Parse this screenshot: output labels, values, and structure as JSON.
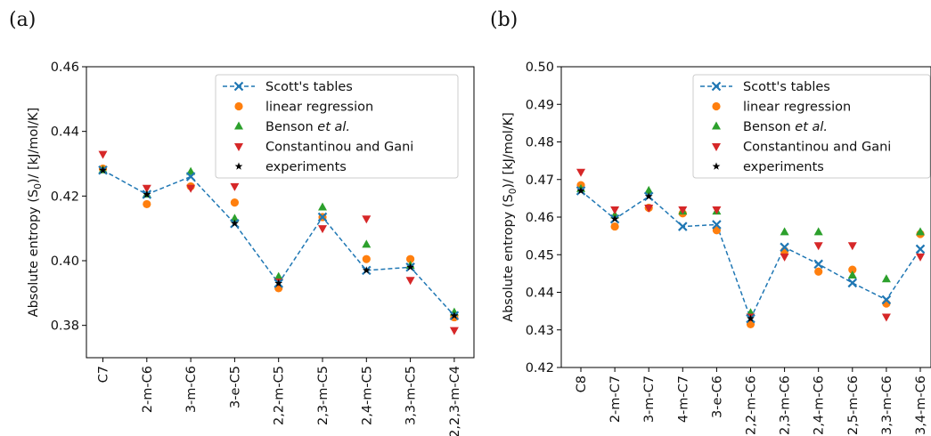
{
  "panels": [
    {
      "tag": "(a)"
    },
    {
      "tag": "(b)"
    }
  ],
  "colors": {
    "scott": "#1f77b4",
    "linear": "#ff7f0e",
    "benson": "#2ca02c",
    "cg": "#d62728",
    "exp": "#000000"
  },
  "chart_data": [
    {
      "type": "scatter",
      "ylabel": "Absolute entropy (S0)/ [kJ/mol/K]",
      "ylim": [
        0.37,
        0.46
      ],
      "yticks": [
        "0.38",
        "0.40",
        "0.42",
        "0.44",
        "0.46"
      ],
      "categories": [
        "C7",
        "2-m-C6",
        "3-m-C6",
        "3-e-C5",
        "2,2-m-C5",
        "2,3-m-C5",
        "2,4-m-C5",
        "3,3-m-C5",
        "2,2,3-m-C4"
      ],
      "legend_position": "top-right",
      "series": [
        {
          "name": "Scott's tables",
          "marker": "x-line",
          "values": [
            0.428,
            0.4205,
            0.426,
            0.4115,
            0.393,
            0.4135,
            0.397,
            0.398,
            0.383
          ]
        },
        {
          "name": "linear regression",
          "marker": "circle",
          "values": [
            0.4285,
            0.4175,
            0.423,
            0.418,
            0.3915,
            0.4135,
            0.4005,
            0.4005,
            0.3825
          ]
        },
        {
          "name": "Benson et al.",
          "marker": "triangle-up",
          "values": [
            0.428,
            0.4205,
            0.4275,
            0.413,
            0.395,
            0.4165,
            0.405,
            0.3985,
            0.384
          ]
        },
        {
          "name": "Constantinou and Gani",
          "marker": "triangle-down",
          "values": [
            0.433,
            0.4225,
            0.4225,
            0.423,
            0.3935,
            0.41,
            0.413,
            0.394,
            0.3785
          ]
        },
        {
          "name": "experiments",
          "marker": "star",
          "values": [
            0.428,
            0.4205,
            null,
            0.4115,
            0.393,
            null,
            0.397,
            0.398,
            0.383
          ]
        }
      ]
    },
    {
      "type": "scatter",
      "ylabel": "Absolute entropy (S0)/ [kJ/mol/K]",
      "ylim": [
        0.42,
        0.5
      ],
      "yticks": [
        "0.42",
        "0.43",
        "0.44",
        "0.45",
        "0.46",
        "0.47",
        "0.48",
        "0.49",
        "0.50"
      ],
      "categories": [
        "C8",
        "2-m-C7",
        "3-m-C7",
        "4-m-C7",
        "3-e-C6",
        "2,2-m-C6",
        "2,3-m-C6",
        "2,4-m-C6",
        "2,5-m-C6",
        "3,3-m-C6",
        "3,4-m-C6"
      ],
      "legend_position": "top-right",
      "series": [
        {
          "name": "Scott's tables",
          "marker": "x-line",
          "values": [
            0.467,
            0.4595,
            0.4655,
            0.4575,
            0.458,
            0.433,
            0.452,
            0.4475,
            0.4425,
            0.438,
            0.4515
          ]
        },
        {
          "name": "linear regression",
          "marker": "circle",
          "values": [
            0.4685,
            0.4575,
            0.4625,
            0.461,
            0.4565,
            0.4315,
            0.451,
            0.4455,
            0.446,
            0.437,
            0.4555
          ]
        },
        {
          "name": "Benson et al.",
          "marker": "triangle-up",
          "values": [
            0.4675,
            0.4605,
            0.467,
            0.4615,
            0.4615,
            0.4345,
            0.456,
            0.456,
            0.4445,
            0.4435,
            0.456
          ]
        },
        {
          "name": "Constantinou and Gani",
          "marker": "triangle-down",
          "values": [
            0.472,
            0.462,
            0.4625,
            0.462,
            0.462,
            0.4335,
            0.4495,
            0.4525,
            0.4525,
            0.4335,
            0.4495
          ]
        },
        {
          "name": "experiments",
          "marker": "star",
          "values": [
            0.467,
            0.4595,
            0.4655,
            null,
            null,
            0.433,
            null,
            null,
            null,
            null,
            null
          ]
        }
      ]
    }
  ]
}
